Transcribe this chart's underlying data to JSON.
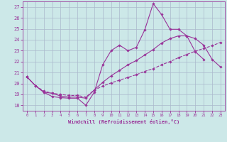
{
  "xlabel": "Windchill (Refroidissement éolien,°C)",
  "bg_color": "#cce8e8",
  "grid_color": "#aab8cc",
  "line_color": "#993399",
  "xlim": [
    -0.5,
    23.5
  ],
  "ylim": [
    17.5,
    27.5
  ],
  "yticks": [
    18,
    19,
    20,
    21,
    22,
    23,
    24,
    25,
    26,
    27
  ],
  "xticks": [
    0,
    1,
    2,
    3,
    4,
    5,
    6,
    7,
    8,
    9,
    10,
    11,
    12,
    13,
    14,
    15,
    16,
    17,
    18,
    19,
    20,
    21,
    22,
    23
  ],
  "series": [
    {
      "x": [
        0,
        1,
        2,
        3,
        4,
        5,
        6,
        7,
        8,
        9,
        10,
        11,
        12,
        13,
        14,
        15,
        16,
        17,
        18,
        19,
        20,
        21
      ],
      "y": [
        20.6,
        19.8,
        19.2,
        18.8,
        18.7,
        18.65,
        18.65,
        18.0,
        19.2,
        21.7,
        23.0,
        23.5,
        23.0,
        23.3,
        24.9,
        27.3,
        26.3,
        24.95,
        24.95,
        24.35,
        22.9,
        22.2
      ],
      "linestyle": "-"
    },
    {
      "x": [
        0,
        1,
        2,
        3,
        4,
        5,
        6,
        7,
        8,
        9,
        10,
        11,
        12,
        13,
        14,
        15,
        16,
        17,
        18,
        19,
        20,
        21,
        22,
        23
      ],
      "y": [
        20.6,
        19.8,
        19.2,
        19.1,
        18.85,
        18.75,
        18.75,
        18.65,
        19.4,
        20.1,
        20.7,
        21.2,
        21.7,
        22.1,
        22.6,
        23.1,
        23.7,
        24.1,
        24.35,
        24.35,
        24.1,
        23.5,
        22.2,
        21.5
      ],
      "linestyle": "-"
    },
    {
      "x": [
        0,
        1,
        2,
        3,
        4,
        5,
        6,
        7,
        8,
        9,
        10,
        11,
        12,
        13,
        14,
        15,
        16,
        17,
        18,
        19,
        20,
        21,
        22,
        23
      ],
      "y": [
        20.6,
        19.8,
        19.3,
        19.1,
        19.0,
        18.9,
        18.9,
        18.75,
        19.4,
        19.75,
        20.05,
        20.3,
        20.55,
        20.8,
        21.1,
        21.35,
        21.7,
        22.0,
        22.35,
        22.65,
        22.95,
        23.2,
        23.45,
        23.75
      ],
      "linestyle": "--"
    }
  ]
}
